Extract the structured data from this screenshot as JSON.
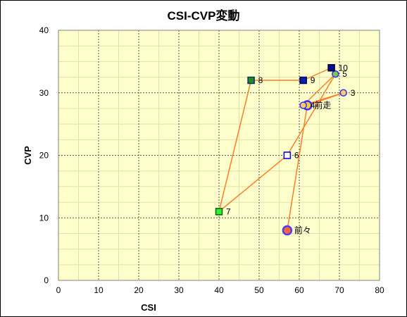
{
  "chart_data": {
    "type": "scatter",
    "title": "CSI-CVP変動",
    "xlabel": "CSI",
    "ylabel": "CVP",
    "xlim": [
      0,
      80
    ],
    "ylim": [
      0,
      40
    ],
    "x_ticks": [
      0,
      10,
      20,
      30,
      40,
      50,
      60,
      70,
      80
    ],
    "y_ticks": [
      0,
      10,
      20,
      30,
      40
    ],
    "grid": true,
    "plot_background": "#ffffcc",
    "line_color": "#ff7f27",
    "path_order": [
      "前々",
      "前走",
      "3",
      "4",
      "5",
      "6",
      "7",
      "8",
      "9",
      "10"
    ],
    "points": [
      {
        "label": "前々",
        "x": 57,
        "y": 8,
        "marker": "circle",
        "size": "large",
        "fill": "#ff6633",
        "stroke": "#4b3cff"
      },
      {
        "label": "前走",
        "x": 62,
        "y": 28,
        "marker": "circle",
        "size": "large",
        "fill": "#ffcc33",
        "stroke": "#3b2cff"
      },
      {
        "label": "3",
        "x": 71,
        "y": 30,
        "marker": "circle",
        "size": "small",
        "fill": "#ffcc66",
        "stroke": "#3333ff"
      },
      {
        "label": "4",
        "x": 61,
        "y": 28,
        "marker": "circle",
        "size": "small",
        "fill": "#ffcc66",
        "stroke": "#3333ff"
      },
      {
        "label": "5",
        "x": 69,
        "y": 33,
        "marker": "circle",
        "size": "small",
        "fill": "#77cc44",
        "stroke": "#3333ff"
      },
      {
        "label": "6",
        "x": 57,
        "y": 20,
        "marker": "square",
        "fill": "#ffffff",
        "stroke": "#0000cc"
      },
      {
        "label": "7",
        "x": 40,
        "y": 11,
        "marker": "square",
        "fill": "#33ee33",
        "stroke": "#006600"
      },
      {
        "label": "8",
        "x": 48,
        "y": 32,
        "marker": "square",
        "fill": "#228822",
        "stroke": "#003366"
      },
      {
        "label": "9",
        "x": 61,
        "y": 32,
        "marker": "square",
        "fill": "#0022aa",
        "stroke": "#000066"
      },
      {
        "label": "10",
        "x": 68,
        "y": 34,
        "marker": "square",
        "fill": "#001188",
        "stroke": "#000044"
      }
    ]
  }
}
